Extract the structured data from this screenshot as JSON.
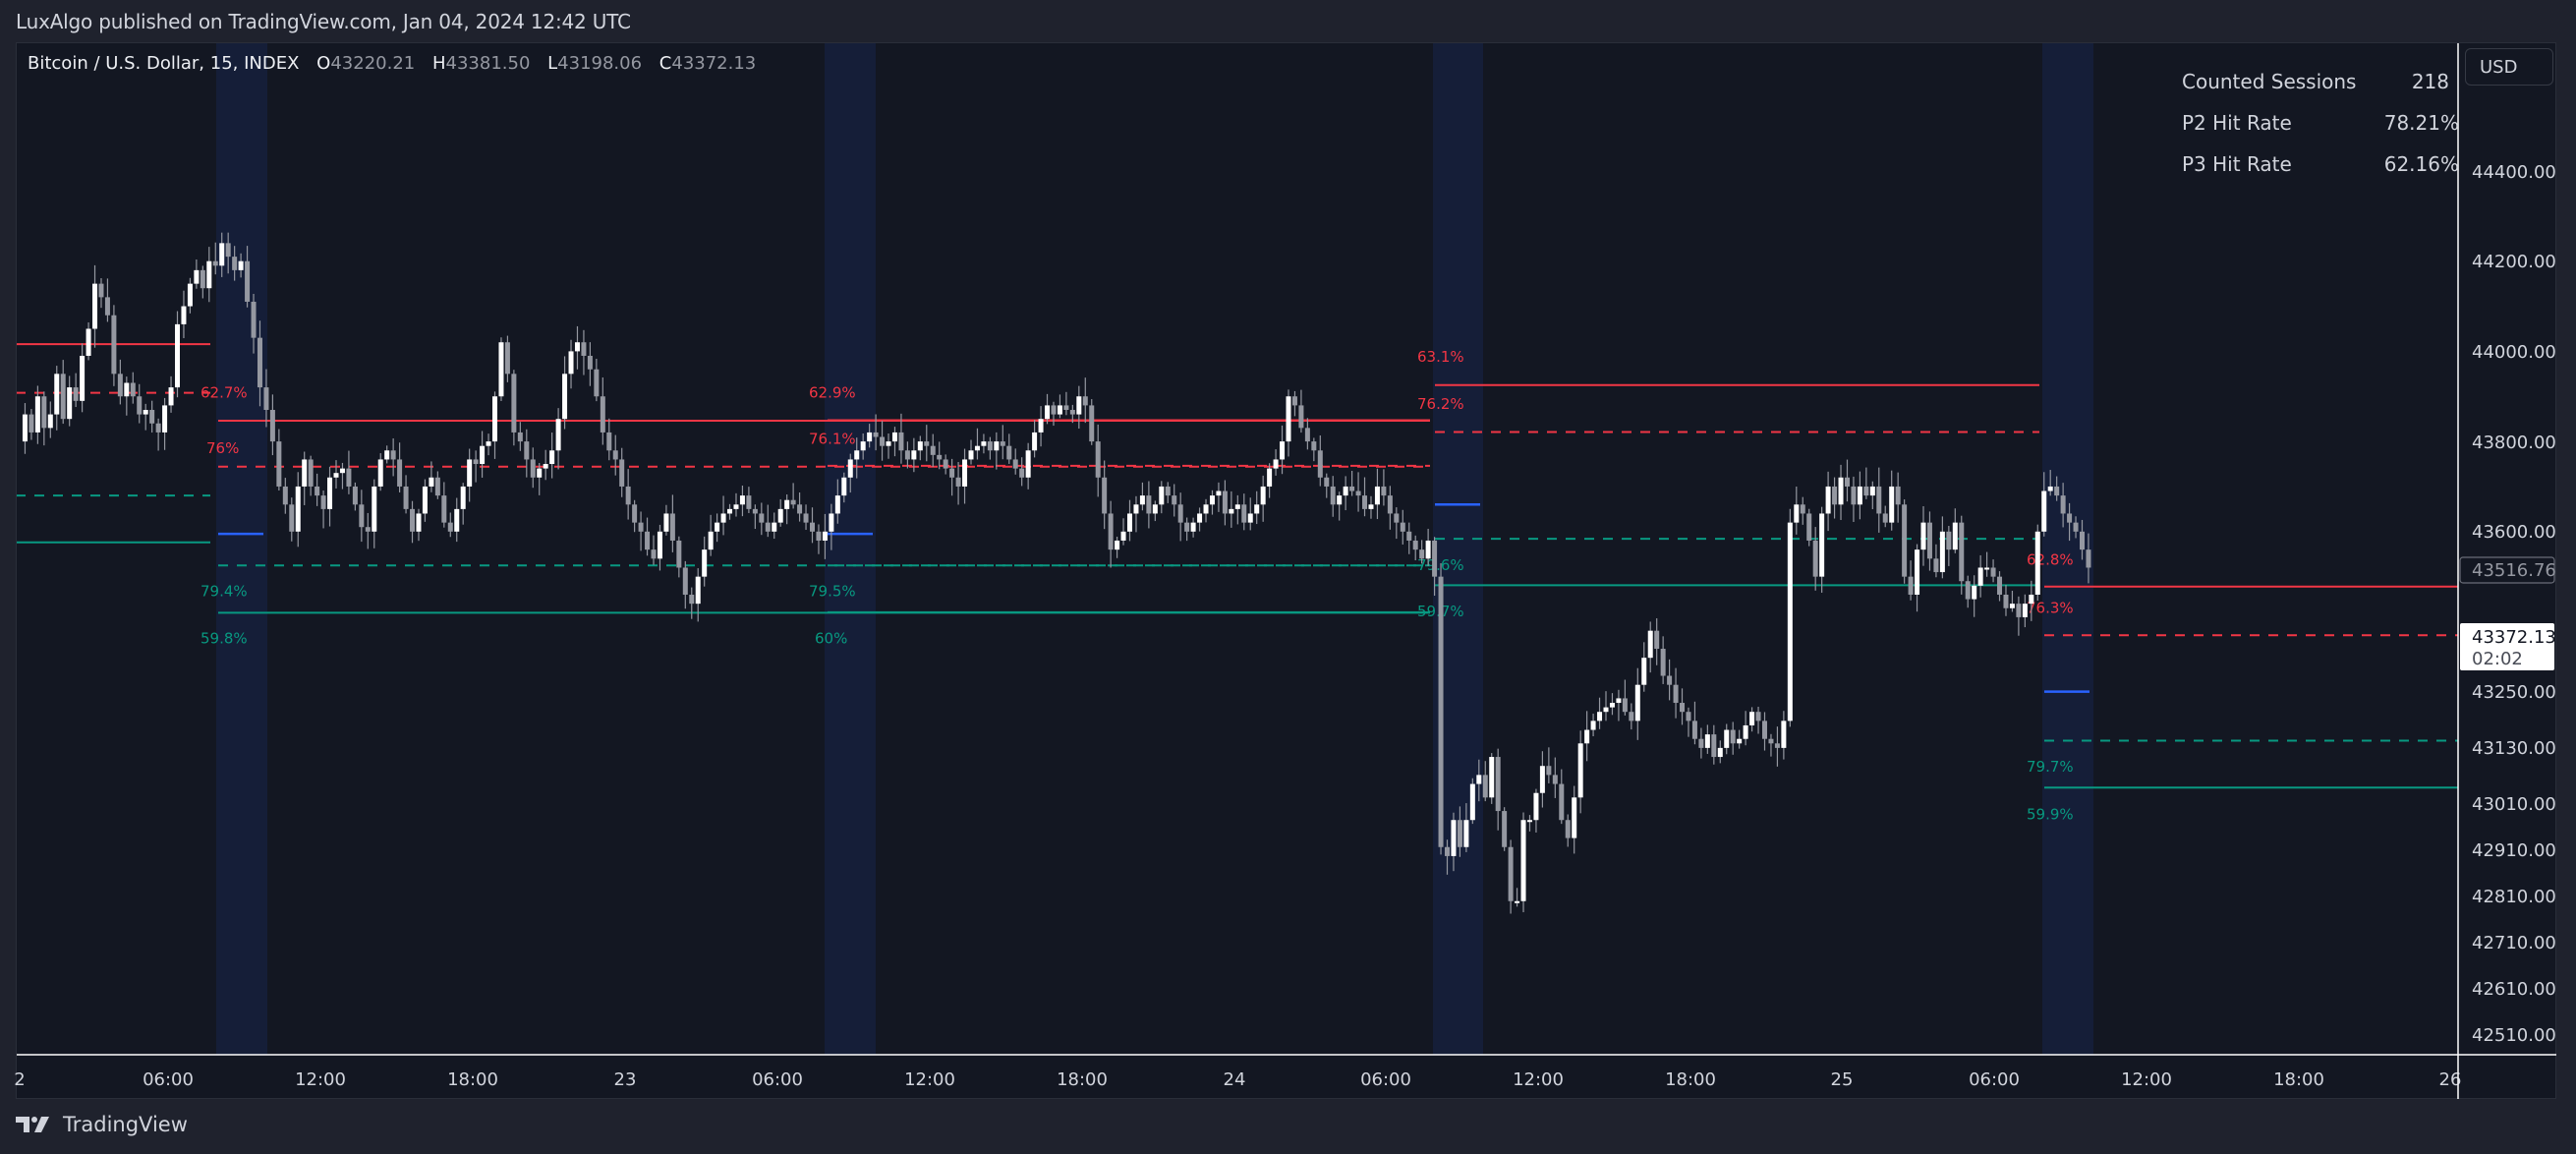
{
  "header": {
    "published": "LuxAlgo published on TradingView.com, Jan 04, 2024 12:42 UTC"
  },
  "legend": {
    "symbol": "Bitcoin / U.S. Dollar, 15, INDEX",
    "o_label": "O",
    "o": "43220.21",
    "h_label": "H",
    "h": "43381.50",
    "l_label": "L",
    "l": "43198.06",
    "c_label": "C",
    "c": "43372.13"
  },
  "stats": {
    "rows": [
      {
        "label": "Counted Sessions",
        "value": "218"
      },
      {
        "label": "P2 Hit Rate",
        "value": "78.21%"
      },
      {
        "label": "P3 Hit Rate",
        "value": "62.16%"
      }
    ]
  },
  "currency_button": "USD",
  "footer": {
    "brand": "TradingView"
  },
  "colors": {
    "background": "#131722",
    "frame": "#1f222d",
    "session_band": "#151e38",
    "bull": "#ffffff",
    "bear": "#9598a1",
    "red_level": "#f23645",
    "teal_level": "#089981",
    "open_line": "#2962ff",
    "axis_text": "#d1d4dc"
  },
  "chart_data": {
    "type": "candlestick",
    "title": "Bitcoin / U.S. Dollar, 15, INDEX",
    "xlabel": "",
    "ylabel": "USD",
    "ylim": [
      42450,
      44500
    ],
    "y_ticks": [
      "44400.00",
      "44200.00",
      "44000.00",
      "43800.00",
      "43600.00",
      "43250.00",
      "43130.00",
      "43010.00",
      "42910.00",
      "42810.00",
      "42710.00",
      "42610.00",
      "42510.00"
    ],
    "y_tick_values": [
      44400,
      44200,
      44000,
      43800,
      43600,
      43250,
      43130,
      43010,
      42910,
      42810,
      42710,
      42610,
      42510
    ],
    "x_ticks": [
      {
        "label": "2",
        "x": 20
      },
      {
        "label": "06:00",
        "x": 171
      },
      {
        "label": "12:00",
        "x": 326
      },
      {
        "label": "18:00",
        "x": 481
      },
      {
        "label": "23",
        "x": 636
      },
      {
        "label": "06:00",
        "x": 791
      },
      {
        "label": "12:00",
        "x": 946
      },
      {
        "label": "18:00",
        "x": 1101
      },
      {
        "label": "24",
        "x": 1256
      },
      {
        "label": "06:00",
        "x": 1410
      },
      {
        "label": "12:00",
        "x": 1565
      },
      {
        "label": "18:00",
        "x": 1720
      },
      {
        "label": "25",
        "x": 1874
      },
      {
        "label": "06:00",
        "x": 2029
      },
      {
        "label": "12:00",
        "x": 2184
      },
      {
        "label": "18:00",
        "x": 2339
      },
      {
        "label": "26",
        "x": 2493
      }
    ],
    "price_labels": [
      {
        "value": "43516.76",
        "price": 43516.76,
        "style": "outline"
      },
      {
        "value": "43372.13",
        "sub": "02:02",
        "price": 43372.13,
        "style": "last"
      }
    ],
    "sessions": [
      {
        "x0": 220,
        "x1": 272
      },
      {
        "x0": 839,
        "x1": 891
      },
      {
        "x0": 1458,
        "x1": 1509
      },
      {
        "x0": 2078,
        "x1": 2130
      }
    ],
    "levels": [
      {
        "x0": 16,
        "x1": 214,
        "price": 44016,
        "color": "red",
        "dash": false
      },
      {
        "x0": 16,
        "x1": 214,
        "price": 43908,
        "color": "red",
        "dash": true
      },
      {
        "x0": 16,
        "x1": 214,
        "price": 43680,
        "color": "teal",
        "dash": true
      },
      {
        "x0": 16,
        "x1": 214,
        "price": 43576,
        "color": "teal",
        "dash": false
      },
      {
        "x0": 222,
        "x1": 1455,
        "price": 43846,
        "color": "red",
        "dash": false,
        "label": "62.7%",
        "lx": 204,
        "ly_price": 43910
      },
      {
        "x0": 222,
        "x1": 1455,
        "price": 43744,
        "color": "red",
        "dash": true,
        "label": "76%",
        "lx": 210,
        "ly_price": 43787
      },
      {
        "x0": 222,
        "x1": 1455,
        "price": 43525,
        "color": "teal",
        "dash": true,
        "label": "79.4%",
        "lx": 204,
        "ly_price": 43470
      },
      {
        "x0": 222,
        "x1": 1455,
        "price": 43420,
        "color": "teal",
        "dash": false,
        "label": "59.8%",
        "lx": 204,
        "ly_price": 43365
      },
      {
        "x0": 842,
        "x1": 1455,
        "price": 43847,
        "color": "red",
        "dash": false,
        "label": "62.9%",
        "lx": 823,
        "ly_price": 43910
      },
      {
        "x0": 842,
        "x1": 1455,
        "price": 43746,
        "color": "red",
        "dash": true,
        "label": "76.1%",
        "lx": 823,
        "ly_price": 43808
      },
      {
        "x0": 842,
        "x1": 1455,
        "price": 43525,
        "color": "teal",
        "dash": true,
        "label": "79.5%",
        "lx": 823,
        "ly_price": 43470
      },
      {
        "x0": 842,
        "x1": 1455,
        "price": 43421,
        "color": "teal",
        "dash": false,
        "label": "60%",
        "lx": 829,
        "ly_price": 43365
      },
      {
        "x0": 1460,
        "x1": 2075,
        "price": 43925,
        "color": "red",
        "dash": false,
        "label": "63.1%",
        "lx": 1442,
        "ly_price": 43990
      },
      {
        "x0": 1460,
        "x1": 2075,
        "price": 43821,
        "color": "red",
        "dash": true,
        "label": "76.2%",
        "lx": 1442,
        "ly_price": 43885
      },
      {
        "x0": 1460,
        "x1": 2075,
        "price": 43584,
        "color": "teal",
        "dash": true,
        "label": "79.6%",
        "lx": 1442,
        "ly_price": 43528
      },
      {
        "x0": 1460,
        "x1": 2075,
        "price": 43481,
        "color": "teal",
        "dash": false,
        "label": "59.7%",
        "lx": 1442,
        "ly_price": 43425
      },
      {
        "x0": 2080,
        "x1": 2501,
        "price": 43478,
        "color": "red",
        "dash": false,
        "label": "62.8%",
        "lx": 2062,
        "ly_price": 43540
      },
      {
        "x0": 2080,
        "x1": 2501,
        "price": 43370,
        "color": "red",
        "dash": true,
        "label": "76.3%",
        "lx": 2062,
        "ly_price": 43433
      },
      {
        "x0": 2080,
        "x1": 2501,
        "price": 43136,
        "color": "teal",
        "dash": true,
        "label": "79.7%",
        "lx": 2062,
        "ly_price": 43080
      },
      {
        "x0": 2080,
        "x1": 2501,
        "price": 43032,
        "color": "teal",
        "dash": false,
        "label": "59.9%",
        "lx": 2062,
        "ly_price": 42975
      }
    ],
    "open_lines": [
      {
        "x0": 222,
        "x1": 268,
        "price": 43595
      },
      {
        "x0": 842,
        "x1": 888,
        "price": 43595
      },
      {
        "x0": 1460,
        "x1": 1506,
        "price": 43660
      },
      {
        "x0": 2080,
        "x1": 2126,
        "price": 43245
      }
    ],
    "candle_spacing_px": 6.46,
    "first_candle_x": 19,
    "close_path": [
      43800,
      43860,
      43820,
      43900,
      43830,
      43860,
      43950,
      43850,
      43920,
      43890,
      43990,
      44050,
      44150,
      44120,
      44080,
      43950,
      43900,
      43930,
      43900,
      43860,
      43870,
      43840,
      43820,
      43880,
      43920,
      44060,
      44100,
      44150,
      44180,
      44140,
      44200,
      44190,
      44240,
      44210,
      44180,
      44200,
      44110,
      44030,
      43920,
      43870,
      43800,
      43700,
      43660,
      43600,
      43700,
      43760,
      43700,
      43680,
      43650,
      43720,
      43730,
      43740,
      43700,
      43660,
      43610,
      43600,
      43700,
      43760,
      43780,
      43760,
      43700,
      43650,
      43600,
      43640,
      43700,
      43720,
      43680,
      43620,
      43600,
      43650,
      43700,
      43760,
      43750,
      43790,
      43800,
      43900,
      44020,
      43950,
      43820,
      43800,
      43760,
      43720,
      43740,
      43750,
      43780,
      43850,
      43950,
      44000,
      44020,
      43990,
      43960,
      43900,
      43820,
      43780,
      43760,
      43700,
      43660,
      43620,
      43600,
      43560,
      43540,
      43600,
      43640,
      43580,
      43520,
      43460,
      43440,
      43500,
      43560,
      43600,
      43620,
      43640,
      43650,
      43660,
      43680,
      43650,
      43640,
      43620,
      43600,
      43620,
      43650,
      43670,
      43660,
      43640,
      43620,
      43600,
      43580,
      43600,
      43640,
      43680,
      43720,
      43760,
      43780,
      43800,
      43820,
      43810,
      43790,
      43800,
      43820,
      43780,
      43760,
      43780,
      43800,
      43790,
      43770,
      43760,
      43740,
      43720,
      43700,
      43760,
      43780,
      43790,
      43800,
      43780,
      43800,
      43790,
      43760,
      43740,
      43720,
      43780,
      43820,
      43850,
      43880,
      43860,
      43880,
      43870,
      43860,
      43900,
      43880,
      43800,
      43720,
      43640,
      43560,
      43580,
      43600,
      43640,
      43660,
      43680,
      43640,
      43660,
      43700,
      43680,
      43660,
      43620,
      43600,
      43620,
      43640,
      43660,
      43680,
      43690,
      43640,
      43650,
      43660,
      43620,
      43640,
      43660,
      43700,
      43740,
      43760,
      43800,
      43900,
      43880,
      43830,
      43800,
      43780,
      43720,
      43700,
      43660,
      43680,
      43700,
      43690,
      43680,
      43650,
      43660,
      43700,
      43680,
      43640,
      43620,
      43600,
      43580,
      43560,
      43540,
      43580,
      43500,
      42900,
      42880,
      42960,
      42900,
      42960,
      43040,
      43060,
      43010,
      43100,
      42980,
      42900,
      42780,
      42780,
      42960,
      42960,
      43020,
      43080,
      43060,
      43040,
      42960,
      42920,
      43010,
      43130,
      43160,
      43180,
      43200,
      43210,
      43220,
      43230,
      43200,
      43180,
      43260,
      43320,
      43380,
      43340,
      43280,
      43260,
      43220,
      43200,
      43180,
      43140,
      43120,
      43150,
      43100,
      43120,
      43160,
      43130,
      43140,
      43170,
      43200,
      43180,
      43140,
      43130,
      43120,
      43180,
      43620,
      43660,
      43640,
      43580,
      43500,
      43640,
      43700,
      43660,
      43720,
      43700,
      43660,
      43700,
      43680,
      43700,
      43640,
      43620,
      43700,
      43660,
      43500,
      43460,
      43560,
      43620,
      43540,
      43510,
      43600,
      43560,
      43620,
      43490,
      43450,
      43480,
      43520,
      43520,
      43500,
      43460,
      43430,
      43440,
      43410,
      43440,
      43460,
      43600,
      43690,
      43700,
      43680,
      43640,
      43620,
      43600,
      43560,
      43520
    ]
  }
}
